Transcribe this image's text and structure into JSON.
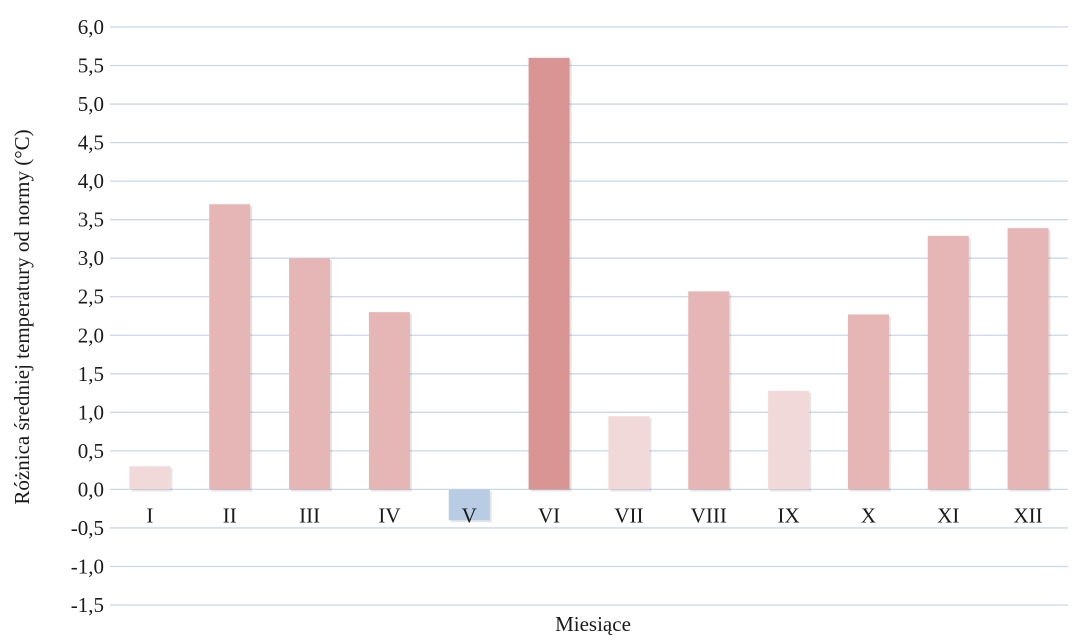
{
  "chart_data": {
    "type": "bar",
    "categories": [
      "I",
      "II",
      "III",
      "IV",
      "V",
      "VI",
      "VII",
      "VIII",
      "IX",
      "X",
      "XI",
      "XII"
    ],
    "values": [
      0.3,
      3.7,
      3.0,
      2.3,
      -0.4,
      5.6,
      0.95,
      2.57,
      1.28,
      2.27,
      3.29,
      3.39
    ],
    "ylim": [
      -1.5,
      6.0
    ],
    "yticks": [
      -1.5,
      -1.0,
      -0.5,
      0.0,
      0.5,
      1.0,
      1.5,
      2.0,
      2.5,
      3.0,
      3.5,
      4.0,
      4.5,
      5.0,
      5.5,
      6.0
    ],
    "ytick_labels": [
      "-1,5",
      "-1,0",
      "-0,5",
      "0,0",
      "0,5",
      "1,0",
      "1,5",
      "2,0",
      "2,5",
      "3,0",
      "3,5",
      "4,0",
      "4,5",
      "5,0",
      "5,5",
      "6,0"
    ],
    "xlabel": "Miesiące",
    "ylabel": "Różnica średniej temperatury od normy (°C)",
    "grid": true,
    "colors": {
      "positive_light": "#f1d9da",
      "positive_medium": "#e6b5b5",
      "positive_strong": "#d99594",
      "negative": "#b8cce4",
      "gridline": "#c9d7ea"
    }
  }
}
